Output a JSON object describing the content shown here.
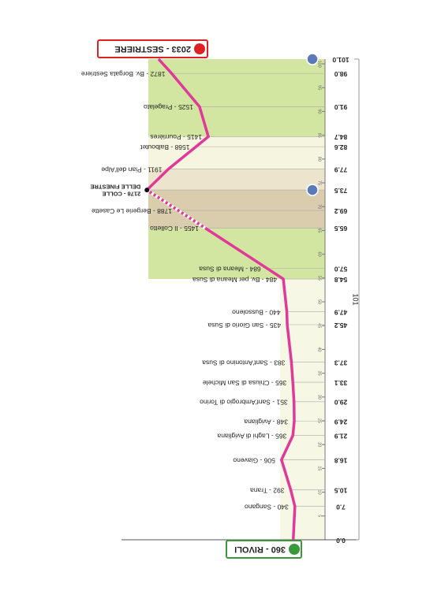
{
  "chart_data": {
    "type": "profile",
    "x": [
      0,
      7,
      10.5,
      16.8,
      21.9,
      24.9,
      29,
      33.1,
      37.3,
      45.2,
      47.9,
      54.8,
      57,
      65.5,
      69.2,
      73.5,
      77.9,
      82.6,
      84.7,
      91,
      98,
      101
    ],
    "x_labels": [
      "0.0",
      "7.0",
      "10.5",
      "16.8",
      "21.9",
      "24.9",
      "29.0",
      "33.1",
      "37.3",
      "45.2",
      "47.9",
      "54.8",
      "57.0",
      "65.5",
      "69.2",
      "73.5",
      "77.9",
      "82.6",
      "84.7",
      "91.0",
      "98.0",
      "101.0"
    ],
    "values": [
      360,
      340,
      392,
      506,
      365,
      348,
      351,
      365,
      383,
      435,
      440,
      484,
      684,
      1455,
      1788,
      2178,
      1911,
      1568,
      1415,
      1525,
      1872,
      2033
    ],
    "point_labels": [
      "360 - RIVOLI",
      "340 - Sangano",
      "392 - Trana",
      "506 - Giaveno",
      "365 - Laghi di Avigliana",
      "348 - Avigliana",
      "351 - Sant'Ambrogio di Torino",
      "365 - Chiusa di San Michele",
      "383 - Sant'Antonino di Susa",
      "435 - San Giorio di Susa",
      "440 - Bussoleno",
      "484 - Bv. per Meana di Susa",
      "684 - Meana di Susa",
      "1455 - Il Colletto",
      "1788 - Bergerie Le Casette",
      [
        "2178 - COLLE",
        "DELLE FINESTRE"
      ],
      "1911 - Pian dell'Alpe",
      "1568 - Balboutet",
      "1415 - Pourrières",
      "1525 - Pragelato",
      "1872 - Bv. Borgata Sestriere",
      "2033 - SESTRIERE"
    ],
    "color": "#e0399a",
    "xlim": [
      0,
      101
    ],
    "xticks": [
      5,
      10,
      15,
      20,
      25,
      30,
      35,
      40,
      45,
      50,
      55,
      60,
      65,
      70,
      75,
      80,
      85,
      90,
      95,
      100
    ],
    "ylim": [
      230,
      2200
    ],
    "total_distance": "101"
  }
}
